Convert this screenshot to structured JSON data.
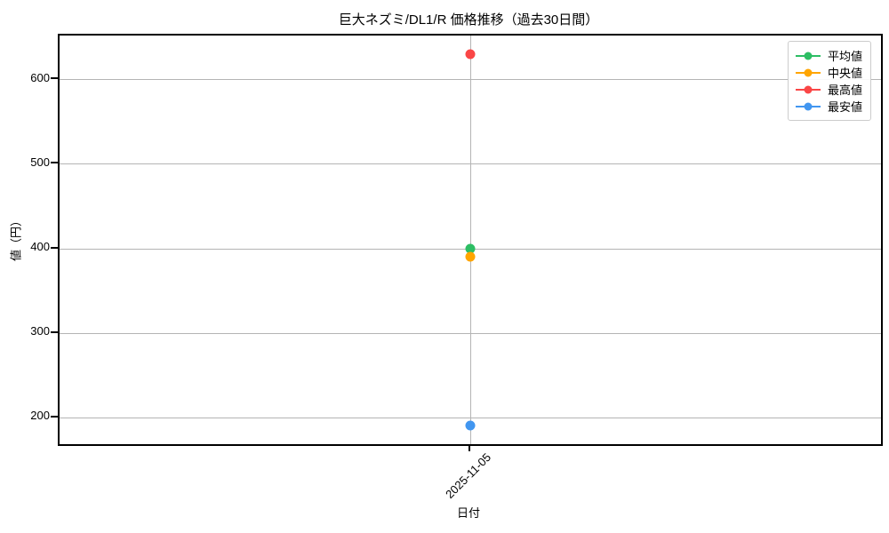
{
  "chart_data": {
    "type": "line",
    "title": "巨大ネズミ/DL1/R 価格推移（過去30日間）",
    "xlabel": "日付",
    "ylabel": "値（円）",
    "x": [
      "2025-11-05"
    ],
    "series": [
      {
        "name": "平均値",
        "color": "#2dbe64",
        "values": [
          400
        ]
      },
      {
        "name": "中央値",
        "color": "#ffa500",
        "values": [
          390
        ]
      },
      {
        "name": "最高値",
        "color": "#fa4646",
        "values": [
          630
        ]
      },
      {
        "name": "最安値",
        "color": "#4196f0",
        "values": [
          190
        ]
      }
    ],
    "yticks": [
      200,
      300,
      400,
      500,
      600
    ],
    "ylim": [
      168,
      652
    ],
    "grid": true,
    "legend_position": "upper right",
    "grid_color": "#b4b4b4",
    "spine_color": "#000000"
  }
}
